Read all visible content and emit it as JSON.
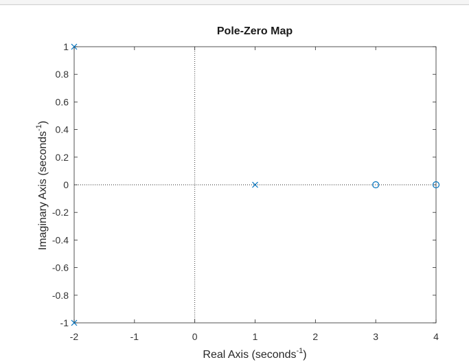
{
  "chart_data": {
    "type": "scatter",
    "title": "Pole-Zero Map",
    "xlabel": "Real Axis (seconds",
    "xlabel_sup": "-1",
    "xlabel_end": ")",
    "ylabel": "Imaginary Axis (seconds",
    "ylabel_sup": "-1",
    "ylabel_end": ")",
    "xlim": [
      -2,
      4
    ],
    "ylim": [
      -1,
      1
    ],
    "xticks": [
      -2,
      -1,
      0,
      1,
      2,
      3,
      4
    ],
    "yticks": [
      -1,
      -0.8,
      -0.6,
      -0.4,
      -0.2,
      0,
      0.2,
      0.4,
      0.6,
      0.8,
      1
    ],
    "xtick_labels": [
      "-2",
      "-1",
      "0",
      "1",
      "2",
      "3",
      "4"
    ],
    "ytick_labels": [
      "-1",
      "-0.8",
      "-0.6",
      "-0.4",
      "-0.2",
      "0",
      "0.2",
      "0.4",
      "0.6",
      "0.8",
      "1"
    ],
    "series": [
      {
        "marker": "x",
        "color": "#0072bd",
        "points": [
          [
            -2,
            1
          ],
          [
            -2,
            -1
          ],
          [
            1,
            0
          ]
        ]
      },
      {
        "marker": "o",
        "color": "#0072bd",
        "points": [
          [
            3,
            0
          ],
          [
            4,
            0
          ]
        ]
      }
    ],
    "grid": false,
    "reference_lines": {
      "x0": true,
      "y0": true,
      "style": "dotted"
    }
  }
}
